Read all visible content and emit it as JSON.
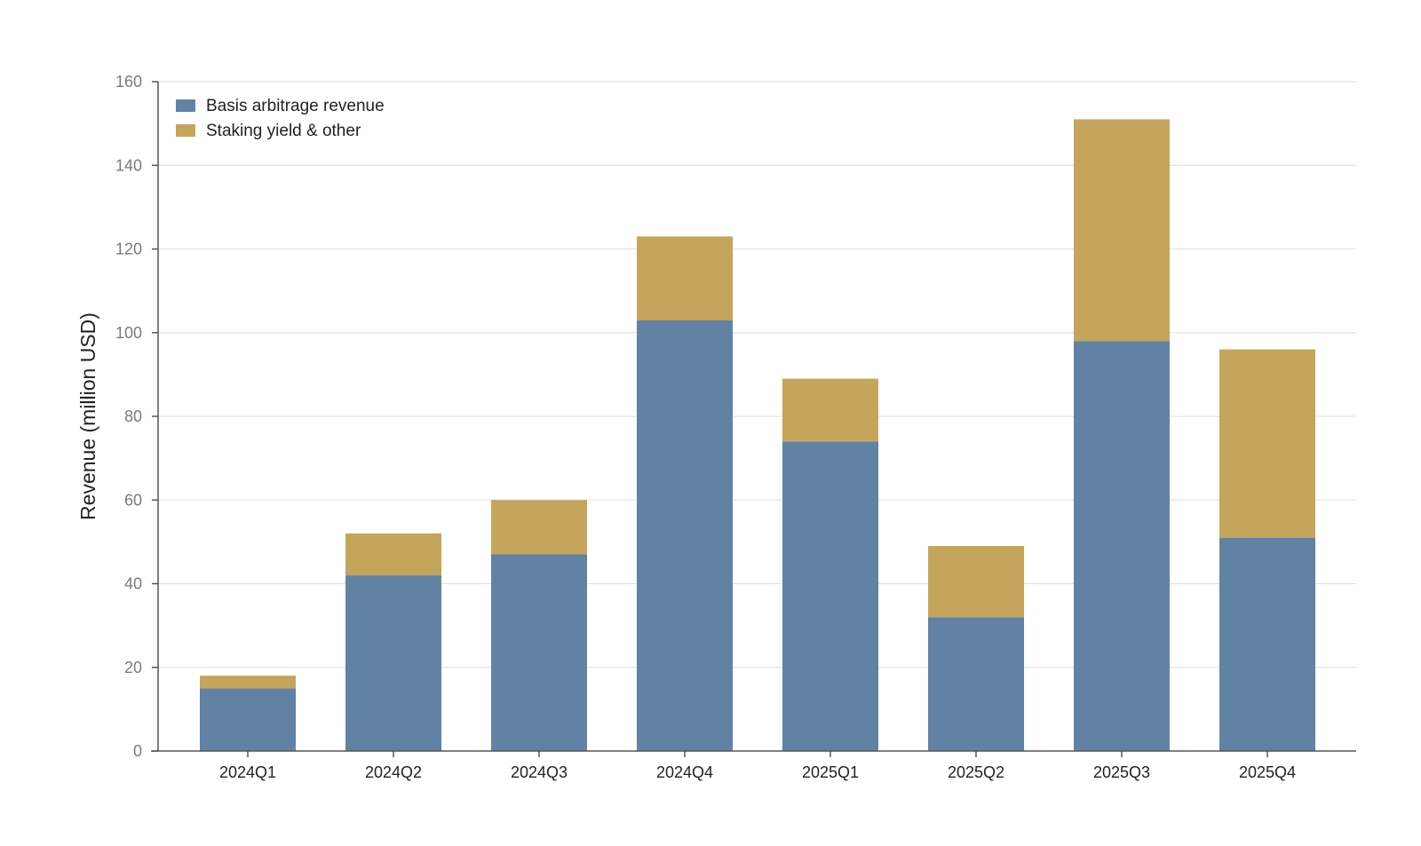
{
  "chart_data": {
    "type": "bar",
    "stacked": true,
    "categories": [
      "2024Q1",
      "2024Q2",
      "2024Q3",
      "2024Q4",
      "2025Q1",
      "2025Q2",
      "2025Q3",
      "2025Q4"
    ],
    "series": [
      {
        "name": "Basis arbitrage revenue",
        "color": "#6282a5",
        "values": [
          15,
          42,
          47,
          103,
          74,
          32,
          98,
          51
        ]
      },
      {
        "name": "Staking yield & other",
        "color": "#c5a55b",
        "values": [
          3,
          10,
          13,
          20,
          15,
          17,
          53,
          45
        ]
      }
    ],
    "title": "",
    "xlabel": "",
    "ylabel": "Revenue (million USD)",
    "ylim": [
      0,
      160
    ],
    "yticks": [
      0,
      20,
      40,
      60,
      80,
      100,
      120,
      140,
      160
    ],
    "grid": true,
    "legend_position": "top-left"
  }
}
